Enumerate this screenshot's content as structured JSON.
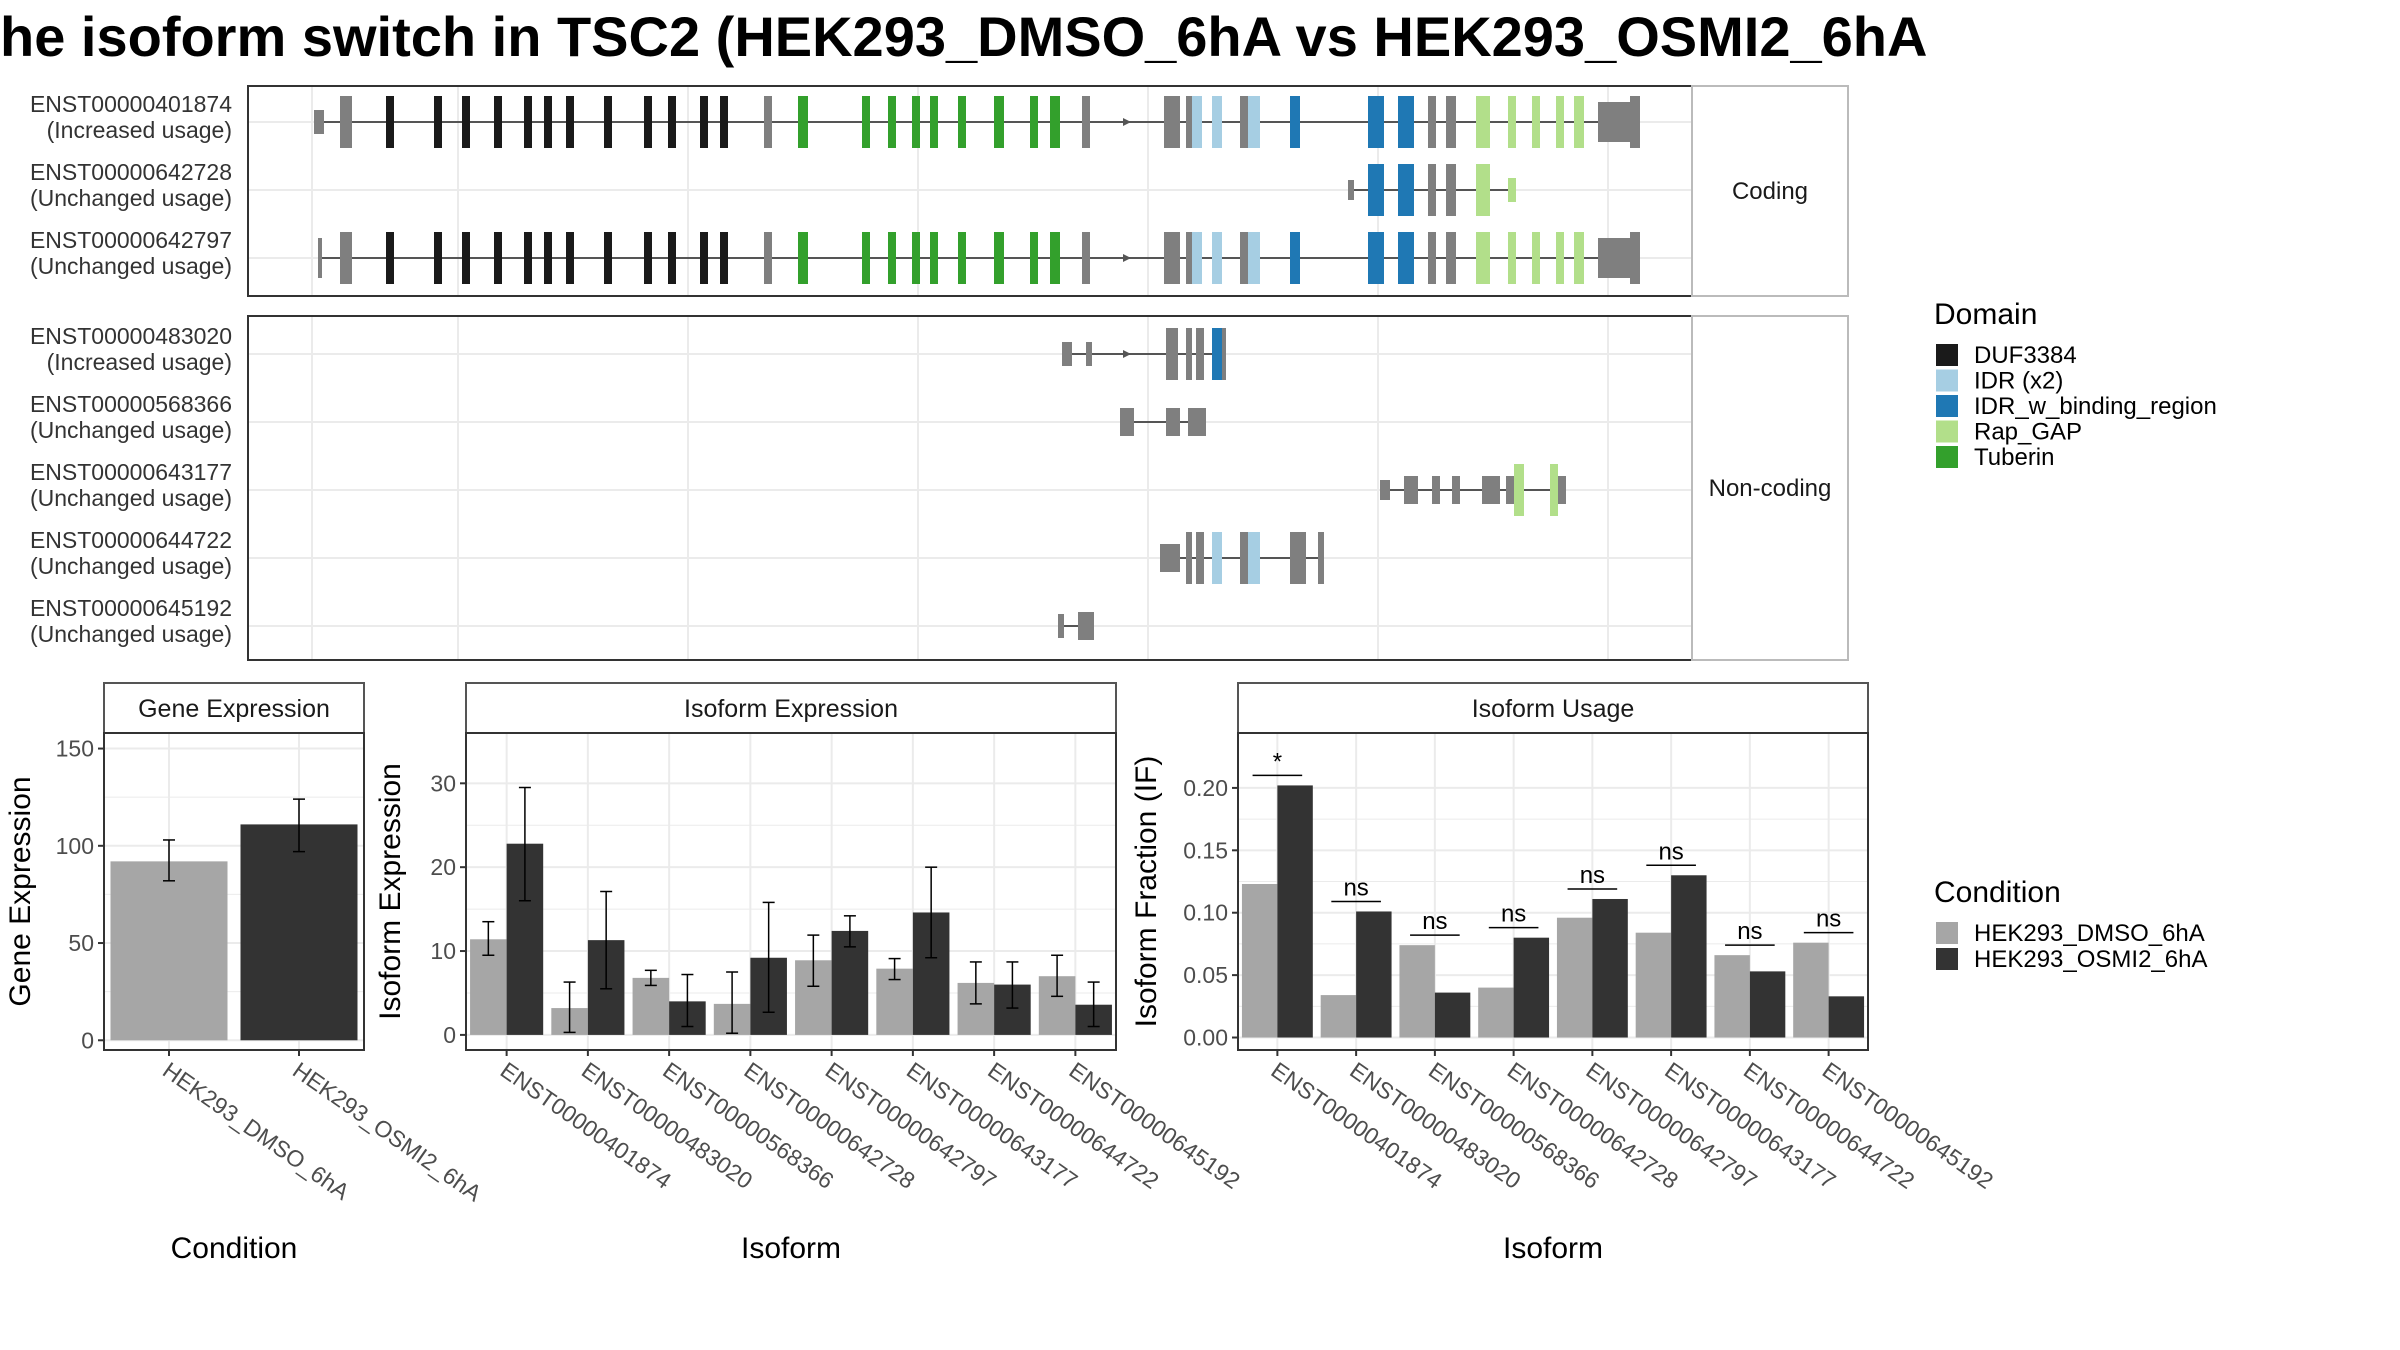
{
  "title": "he isoform switch in TSC2 (HEK293_DMSO_6hA vs HEK293_OSMI2_6hA",
  "colors": {
    "DUF3384": "#1a1a1a",
    "IDR (x2)": "#a6cee3",
    "IDR_w_binding_region": "#1f78b4",
    "Rap_GAP": "#b2df8a",
    "Tuberin": "#33a02c",
    "exon": "#7f7f7f",
    "ctrl": "#a6a6a6",
    "treat": "#333333",
    "panel_border": "#333333",
    "strip_bg": "#ffffff",
    "grid": "#ebebeb"
  },
  "chart_data": [
    {
      "type": "gene-structure",
      "panels": [
        {
          "label": "Coding",
          "transcripts": [
            {
              "id": "ENST00000401874",
              "usage": "(Increased usage)"
            },
            {
              "id": "ENST00000642728",
              "usage": "(Unchanged usage)"
            },
            {
              "id": "ENST00000642797",
              "usage": "(Unchanged usage)"
            }
          ]
        },
        {
          "label": "Non-coding",
          "transcripts": [
            {
              "id": "ENST00000483020",
              "usage": "(Increased usage)"
            },
            {
              "id": "ENST00000568366",
              "usage": "(Unchanged usage)"
            },
            {
              "id": "ENST00000643177",
              "usage": "(Unchanged usage)"
            },
            {
              "id": "ENST00000644722",
              "usage": "(Unchanged usage)"
            },
            {
              "id": "ENST00000645192",
              "usage": "(Unchanged usage)"
            }
          ]
        }
      ],
      "legend_title": "Domain",
      "legend": [
        "DUF3384",
        "IDR (x2)",
        "IDR_w_binding_region",
        "Rap_GAP",
        "Tuberin"
      ]
    },
    {
      "type": "bar",
      "strip": "Gene Expression",
      "xlabel": "Condition",
      "ylabel": "Gene Expression",
      "categories": [
        "HEK293_DMSO_6hA",
        "HEK293_OSMI2_6hA"
      ],
      "values": [
        92,
        111
      ],
      "errors": [
        [
          82,
          103
        ],
        [
          97,
          124
        ]
      ],
      "ylim": [
        -5,
        158
      ],
      "yticks": [
        0,
        50,
        100,
        150
      ]
    },
    {
      "type": "bar",
      "strip": "Isoform Expression",
      "xlabel": "Isoform",
      "ylabel": "Isoform Expression",
      "categories": [
        "ENST00000401874",
        "ENST00000483020",
        "ENST00000568366",
        "ENST00000642728",
        "ENST00000642797",
        "ENST00000643177",
        "ENST00000644722",
        "ENST00000645192"
      ],
      "series": [
        {
          "name": "HEK293_DMSO_6hA",
          "values": [
            11.4,
            3.2,
            6.8,
            3.7,
            8.9,
            7.9,
            6.2,
            7.0
          ],
          "errors": [
            [
              9.5,
              13.5
            ],
            [
              0.3,
              6.3
            ],
            [
              5.9,
              7.7
            ],
            [
              0.2,
              7.5
            ],
            [
              5.8,
              11.9
            ],
            [
              6.6,
              9.1
            ],
            [
              3.7,
              8.7
            ],
            [
              4.6,
              9.5
            ]
          ]
        },
        {
          "name": "HEK293_OSMI2_6hA",
          "values": [
            22.8,
            11.3,
            4.0,
            9.2,
            12.4,
            14.6,
            6.0,
            3.6
          ],
          "errors": [
            [
              16.0,
              29.5
            ],
            [
              5.5,
              17.1
            ],
            [
              1.0,
              7.2
            ],
            [
              2.7,
              15.8
            ],
            [
              10.5,
              14.2
            ],
            [
              9.2,
              20.0
            ],
            [
              3.2,
              8.7
            ],
            [
              1.0,
              6.3
            ]
          ]
        }
      ],
      "ylim": [
        -1.8,
        36
      ],
      "yticks": [
        0,
        10,
        20,
        30
      ]
    },
    {
      "type": "bar",
      "strip": "Isoform Usage",
      "xlabel": "Isoform",
      "ylabel": "Isoform Fraction (IF)",
      "categories": [
        "ENST00000401874",
        "ENST00000483020",
        "ENST00000568366",
        "ENST00000642728",
        "ENST00000642797",
        "ENST00000643177",
        "ENST00000644722",
        "ENST00000645192"
      ],
      "series": [
        {
          "name": "HEK293_DMSO_6hA",
          "values": [
            0.123,
            0.034,
            0.074,
            0.04,
            0.096,
            0.084,
            0.066,
            0.076
          ]
        },
        {
          "name": "HEK293_OSMI2_6hA",
          "values": [
            0.202,
            0.101,
            0.036,
            0.08,
            0.111,
            0.13,
            0.053,
            0.033
          ]
        }
      ],
      "significance": [
        "*",
        "ns",
        "ns",
        "ns",
        "ns",
        "ns",
        "ns",
        "ns"
      ],
      "ylim": [
        -0.01,
        0.244
      ],
      "yticks": [
        0.0,
        0.05,
        0.1,
        0.15,
        0.2
      ],
      "ytick_labels": [
        "0.00",
        "0.05",
        "0.10",
        "0.15",
        "0.20"
      ]
    }
  ],
  "condition_legend": {
    "title": "Condition",
    "items": [
      "HEK293_DMSO_6hA",
      "HEK293_OSMI2_6hA"
    ]
  }
}
